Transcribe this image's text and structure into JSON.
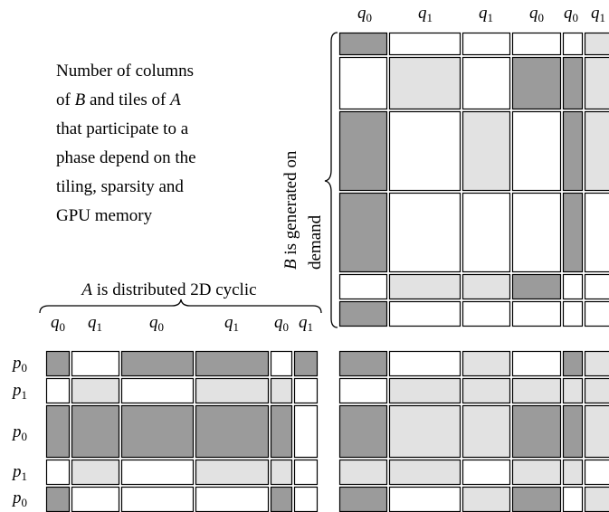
{
  "note": {
    "lines": [
      [
        {
          "text": "Number of columns"
        }
      ],
      [
        {
          "text": "of "
        },
        {
          "text": "B",
          "italic": true
        },
        {
          "text": " and tiles of "
        },
        {
          "text": "A",
          "italic": true
        }
      ],
      [
        {
          "text": "that participate to a"
        }
      ],
      [
        {
          "text": "phase depend on the"
        }
      ],
      [
        {
          "text": "tiling, sparsity and"
        }
      ],
      [
        {
          "text": "GPU memory"
        }
      ]
    ]
  },
  "b_caption": {
    "lines": [
      [
        {
          "text": "B",
          "italic": true
        },
        {
          "text": " is generated on"
        }
      ],
      [
        {
          "text": "demand"
        }
      ]
    ]
  },
  "a_caption": {
    "lines": [
      [
        {
          "text": "A",
          "italic": true
        },
        {
          "text": " is distributed 2D cyclic"
        }
      ]
    ]
  },
  "b_columns": [
    {
      "var": "q",
      "sub": "0"
    },
    {
      "var": "q",
      "sub": "1"
    },
    {
      "var": "q",
      "sub": "1"
    },
    {
      "var": "q",
      "sub": "0"
    },
    {
      "var": "q",
      "sub": "0"
    },
    {
      "var": "q",
      "sub": "1"
    }
  ],
  "a_columns": [
    {
      "var": "q",
      "sub": "0"
    },
    {
      "var": "q",
      "sub": "1"
    },
    {
      "var": "q",
      "sub": "0"
    },
    {
      "var": "q",
      "sub": "1"
    },
    {
      "var": "q",
      "sub": "0"
    },
    {
      "var": "q",
      "sub": "1"
    }
  ],
  "a_rows": [
    {
      "var": "p",
      "sub": "0"
    },
    {
      "var": "p",
      "sub": "1"
    },
    {
      "var": "p",
      "sub": "0"
    },
    {
      "var": "p",
      "sub": "1"
    },
    {
      "var": "p",
      "sub": "0"
    }
  ]
}
